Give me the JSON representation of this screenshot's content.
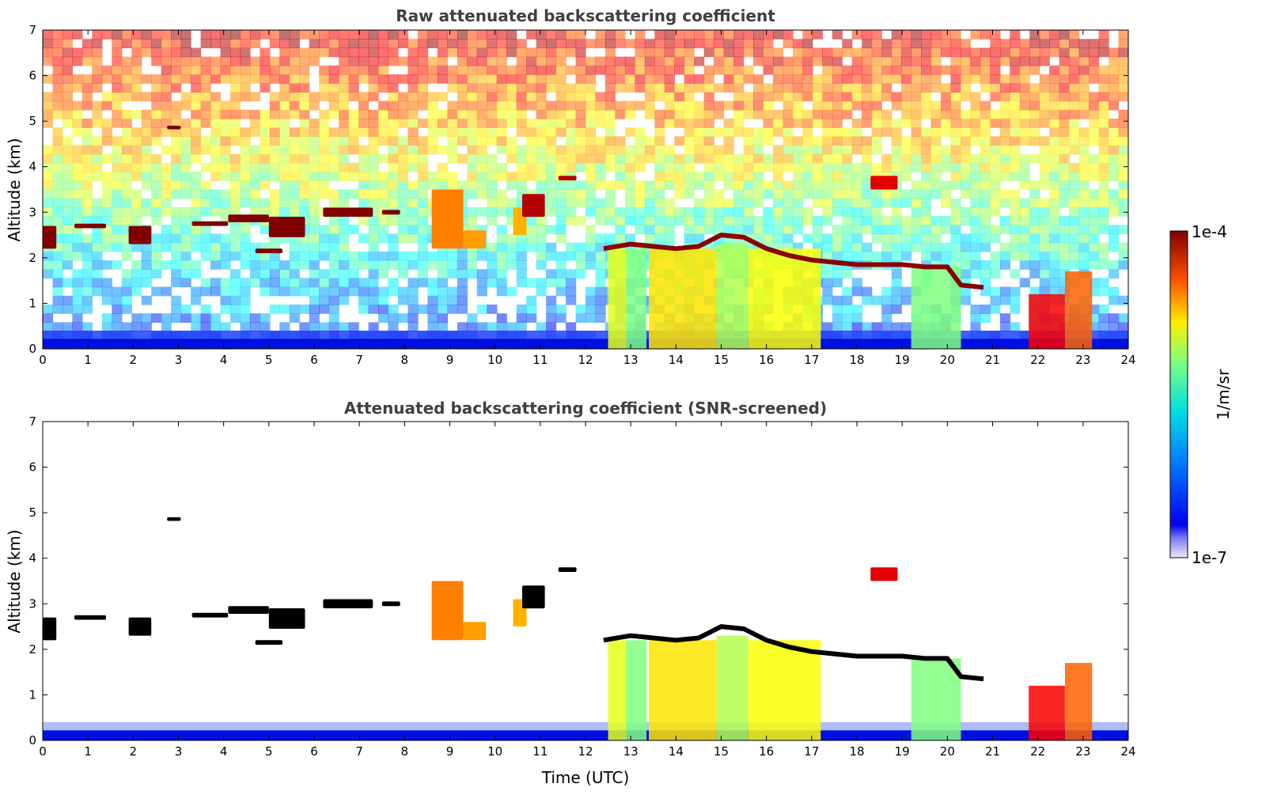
{
  "chart_data": [
    {
      "type": "heatmap",
      "title": "Raw attenuated backscattering coefficient",
      "xlabel": "",
      "ylabel": "Altitude (km)",
      "xlim": [
        0,
        24
      ],
      "ylim": [
        0,
        7
      ],
      "x_ticks": [
        0,
        1,
        2,
        3,
        4,
        5,
        6,
        7,
        8,
        9,
        10,
        11,
        12,
        13,
        14,
        15,
        16,
        17,
        18,
        19,
        20,
        21,
        22,
        23,
        24
      ],
      "y_ticks": [
        0,
        1,
        2,
        3,
        4,
        5,
        6,
        7
      ],
      "screened": false,
      "cloud_layers": [
        {
          "x": [
            0.0,
            0.3
          ],
          "y": [
            2.2,
            2.7
          ],
          "level": 1.0
        },
        {
          "x": [
            0.7,
            1.4
          ],
          "y": [
            2.65,
            2.75
          ],
          "level": 1.0
        },
        {
          "x": [
            1.9,
            2.4
          ],
          "y": [
            2.3,
            2.7
          ],
          "level": 1.0
        },
        {
          "x": [
            2.75,
            3.05
          ],
          "y": [
            4.82,
            4.9
          ],
          "level": 1.0
        },
        {
          "x": [
            3.3,
            4.1
          ],
          "y": [
            2.7,
            2.8
          ],
          "level": 1.0
        },
        {
          "x": [
            4.1,
            5.0
          ],
          "y": [
            2.78,
            2.95
          ],
          "level": 1.0
        },
        {
          "x": [
            5.0,
            5.8
          ],
          "y": [
            2.45,
            2.9
          ],
          "level": 1.0
        },
        {
          "x": [
            4.7,
            5.3
          ],
          "y": [
            2.1,
            2.2
          ],
          "level": 1.0
        },
        {
          "x": [
            6.2,
            7.3
          ],
          "y": [
            2.9,
            3.1
          ],
          "level": 1.0
        },
        {
          "x": [
            7.5,
            7.9
          ],
          "y": [
            2.95,
            3.05
          ],
          "level": 1.0
        },
        {
          "x": [
            8.6,
            9.3
          ],
          "y": [
            2.2,
            3.5
          ],
          "level": 0.75
        },
        {
          "x": [
            9.3,
            9.8
          ],
          "y": [
            2.2,
            2.6
          ],
          "level": 0.72
        },
        {
          "x": [
            10.4,
            10.7
          ],
          "y": [
            2.5,
            3.1
          ],
          "level": 0.7
        },
        {
          "x": [
            10.6,
            11.1
          ],
          "y": [
            2.9,
            3.4
          ],
          "level": 0.95
        },
        {
          "x": [
            11.4,
            11.8
          ],
          "y": [
            3.7,
            3.8
          ],
          "level": 0.95
        },
        {
          "x": [
            18.3,
            18.9
          ],
          "y": [
            3.5,
            3.8
          ],
          "level": 0.9
        }
      ],
      "cloud_base": [
        {
          "x": 12.4,
          "y": 2.2
        },
        {
          "x": 13.0,
          "y": 2.3
        },
        {
          "x": 13.5,
          "y": 2.25
        },
        {
          "x": 14.0,
          "y": 2.2
        },
        {
          "x": 14.5,
          "y": 2.25
        },
        {
          "x": 15.0,
          "y": 2.5
        },
        {
          "x": 15.5,
          "y": 2.45
        },
        {
          "x": 16.0,
          "y": 2.2
        },
        {
          "x": 16.5,
          "y": 2.05
        },
        {
          "x": 17.0,
          "y": 1.95
        },
        {
          "x": 17.5,
          "y": 1.9
        },
        {
          "x": 18.0,
          "y": 1.85
        },
        {
          "x": 18.5,
          "y": 1.85
        },
        {
          "x": 19.0,
          "y": 1.85
        },
        {
          "x": 19.5,
          "y": 1.8
        },
        {
          "x": 20.0,
          "y": 1.8
        },
        {
          "x": 20.3,
          "y": 1.4
        },
        {
          "x": 20.8,
          "y": 1.35
        }
      ],
      "precipitation_columns": [
        {
          "x": [
            12.5,
            12.9
          ],
          "top": 2.2,
          "level": 0.6
        },
        {
          "x": [
            12.9,
            13.35
          ],
          "top": 2.2,
          "level": 0.5
        },
        {
          "x": [
            13.4,
            14.9
          ],
          "top": 2.2,
          "level": 0.65
        },
        {
          "x": [
            14.9,
            15.6
          ],
          "top": 2.3,
          "level": 0.55
        },
        {
          "x": [
            15.6,
            17.2
          ],
          "top": 2.2,
          "level": 0.62
        },
        {
          "x": [
            19.2,
            20.3
          ],
          "top": 1.8,
          "level": 0.5
        },
        {
          "x": [
            21.8,
            22.6
          ],
          "top": 1.2,
          "level": 0.88
        },
        {
          "x": [
            22.6,
            23.2
          ],
          "top": 1.7,
          "level": 0.78
        }
      ]
    },
    {
      "type": "heatmap",
      "title": "Attenuated backscattering coefficient (SNR-screened)",
      "xlabel": "Time (UTC)",
      "ylabel": "Altitude (km)",
      "xlim": [
        0,
        24
      ],
      "ylim": [
        0,
        7
      ],
      "x_ticks": [
        0,
        1,
        2,
        3,
        4,
        5,
        6,
        7,
        8,
        9,
        10,
        11,
        12,
        13,
        14,
        15,
        16,
        17,
        18,
        19,
        20,
        21,
        22,
        23,
        24
      ],
      "y_ticks": [
        0,
        1,
        2,
        3,
        4,
        5,
        6,
        7
      ],
      "screened": true,
      "notes_saturated_color": "#000000"
    }
  ],
  "colorbar": {
    "label": "1/m/sr",
    "max_label": "1e-4",
    "min_label": "1e-7",
    "scale": "log",
    "range": [
      1e-07,
      0.0001
    ],
    "colormap": "jet"
  }
}
